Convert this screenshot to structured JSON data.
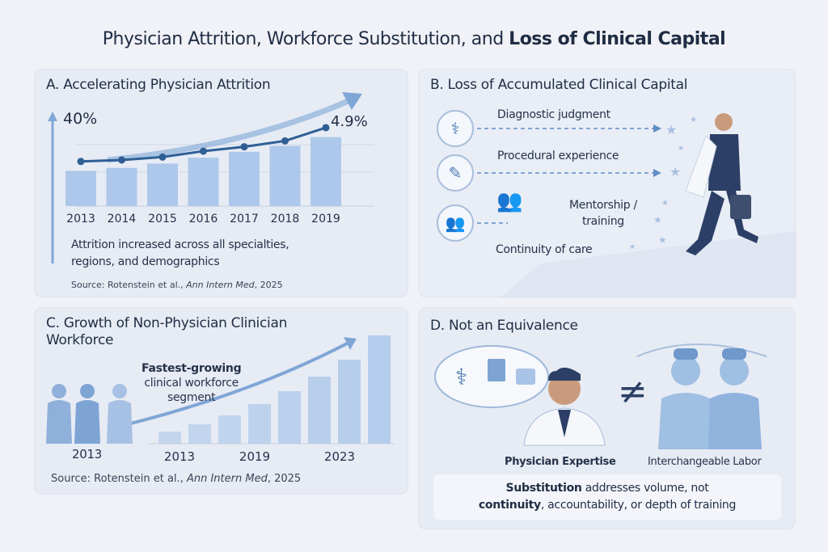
{
  "title": {
    "regular": "Physician Attrition, Workforce Substitution, and",
    "bold": "Loss of Clinical Capital"
  },
  "panel_a": {
    "heading": "A. Accelerating Physician Attrition",
    "note_line1": "Attrition increased across all specialties,",
    "note_line2": "regions, and demographics",
    "source_prefix": "Source: Rotenstein et al.,",
    "source_journal": "Ann Intern Med",
    "source_year": ", 2025"
  },
  "panel_b": {
    "heading": "B. Loss of Accumulated Clinical Capital",
    "items": [
      "Diagnostic judgment",
      "Procedural experience",
      "Mentorship /",
      "training",
      "Continuity of care"
    ]
  },
  "panel_c": {
    "heading_line1": "C. Growth of Non-Physician Clinician",
    "heading_line2": "Workforce",
    "callout_bold": "Fastest-growing",
    "callout_line2": "clinical workforce",
    "callout_line3": "segment",
    "left_year": "2013",
    "source_prefix": "Source: Rotenstein et al.,",
    "source_journal": "Ann Intern Med",
    "source_year": ", 2025"
  },
  "panel_d": {
    "heading": "D. Not an Equivalence",
    "neq": "≠",
    "physician_label": "Physician Expertise",
    "labor_label": "Interchangeable Labor",
    "summary_bold1": "Substitution",
    "summary_rest1": " addresses volume, not",
    "summary_bold2": "continuity",
    "summary_rest2": ", accountability, or depth of training"
  },
  "chart_data": [
    {
      "type": "bar",
      "name": "physician-attrition",
      "categories": [
        "2013",
        "2014",
        "2015",
        "2016",
        "2017",
        "2018",
        "2019"
      ],
      "bar_values": [
        2.4,
        2.6,
        2.9,
        3.3,
        3.7,
        4.1,
        4.7
      ],
      "line_values": [
        2.6,
        2.7,
        2.9,
        3.3,
        3.6,
        4.0,
        4.9
      ],
      "ylabel_top": "40%",
      "end_label": "4.9%",
      "ylim": [
        0,
        6
      ]
    },
    {
      "type": "bar",
      "name": "non-physician-growth",
      "values": [
        15,
        24,
        35,
        49,
        65,
        83,
        104,
        134
      ],
      "tick_labels": [
        "2013",
        "2019",
        "2023"
      ],
      "ylim": [
        0,
        140
      ]
    }
  ],
  "colors": {
    "bar": "#adc8ea",
    "line": "#2f5f95",
    "arrow": "#7fa6d6"
  }
}
